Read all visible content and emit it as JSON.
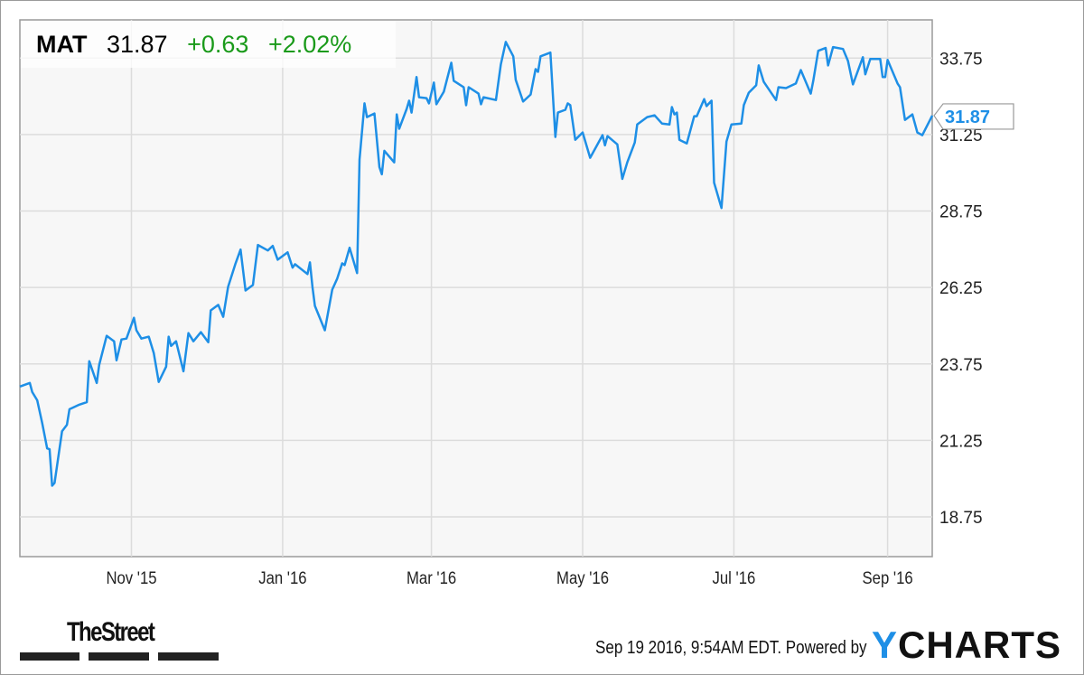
{
  "header": {
    "symbol": "MAT",
    "price": "31.87",
    "change": "+0.63",
    "change_pct": "+2.02%"
  },
  "last_value_label": "31.87",
  "footer": {
    "timestamp": "Sep 19 2016, 9:54AM EDT. Powered by",
    "brand_left": "TheStreet",
    "brand_right_y": "Y",
    "brand_right_rest": "CHARTS"
  },
  "colors": {
    "line": "#1e8fe6",
    "positive": "#1a9a1a",
    "grid": "#dcdcdc",
    "plot_bg": "#f7f7f7"
  },
  "chart_data": {
    "type": "line",
    "title": "",
    "xlabel": "",
    "ylabel": "",
    "ylim": [
      17.45,
      35.0
    ],
    "xlim": [
      "2015-09-17",
      "2016-09-19"
    ],
    "grid": true,
    "y_ticks": [
      "18.75",
      "21.25",
      "23.75",
      "26.25",
      "28.75",
      "31.25",
      "33.75"
    ],
    "x_ticks": [
      {
        "date": "2015-11-01",
        "label": "Nov '15"
      },
      {
        "date": "2016-01-01",
        "label": "Jan '16"
      },
      {
        "date": "2016-03-01",
        "label": "Mar '16"
      },
      {
        "date": "2016-05-01",
        "label": "May '16"
      },
      {
        "date": "2016-07-01",
        "label": "Jul '16"
      },
      {
        "date": "2016-09-01",
        "label": "Sep '16"
      }
    ],
    "series": [
      {
        "points": [
          [
            "2015-09-17",
            23.01
          ],
          [
            "2015-09-21",
            23.13
          ],
          [
            "2015-09-22",
            22.83
          ],
          [
            "2015-09-24",
            22.56
          ],
          [
            "2015-09-26",
            21.82
          ],
          [
            "2015-09-28",
            20.99
          ],
          [
            "2015-09-29",
            20.96
          ],
          [
            "2015-09-30",
            19.77
          ],
          [
            "2015-10-01",
            19.86
          ],
          [
            "2015-10-04",
            21.55
          ],
          [
            "2015-10-06",
            21.76
          ],
          [
            "2015-10-07",
            22.27
          ],
          [
            "2015-10-11",
            22.42
          ],
          [
            "2015-10-14",
            22.5
          ],
          [
            "2015-10-15",
            23.84
          ],
          [
            "2015-10-18",
            23.13
          ],
          [
            "2015-10-19",
            23.72
          ],
          [
            "2015-10-22",
            24.67
          ],
          [
            "2015-10-25",
            24.49
          ],
          [
            "2015-10-26",
            23.87
          ],
          [
            "2015-10-28",
            24.55
          ],
          [
            "2015-10-30",
            24.58
          ],
          [
            "2015-11-02",
            25.26
          ],
          [
            "2015-11-03",
            24.85
          ],
          [
            "2015-11-05",
            24.58
          ],
          [
            "2015-11-08",
            24.64
          ],
          [
            "2015-11-10",
            24.11
          ],
          [
            "2015-11-12",
            23.16
          ],
          [
            "2015-11-15",
            23.66
          ],
          [
            "2015-11-16",
            24.64
          ],
          [
            "2015-11-17",
            24.34
          ],
          [
            "2015-11-19",
            24.49
          ],
          [
            "2015-11-22",
            23.51
          ],
          [
            "2015-11-24",
            24.76
          ],
          [
            "2015-11-26",
            24.49
          ],
          [
            "2015-11-29",
            24.79
          ],
          [
            "2015-12-02",
            24.46
          ],
          [
            "2015-12-03",
            25.5
          ],
          [
            "2015-12-06",
            25.68
          ],
          [
            "2015-12-08",
            25.29
          ],
          [
            "2015-12-10",
            26.27
          ],
          [
            "2015-12-13",
            27.04
          ],
          [
            "2015-12-15",
            27.49
          ],
          [
            "2015-12-17",
            26.15
          ],
          [
            "2015-12-20",
            26.33
          ],
          [
            "2015-12-22",
            27.64
          ],
          [
            "2015-12-26",
            27.46
          ],
          [
            "2015-12-28",
            27.61
          ],
          [
            "2015-12-30",
            27.16
          ],
          [
            "2016-01-03",
            27.4
          ],
          [
            "2016-01-05",
            26.9
          ],
          [
            "2016-01-06",
            27.01
          ],
          [
            "2016-01-11",
            26.69
          ],
          [
            "2016-01-12",
            27.07
          ],
          [
            "2016-01-13",
            26.27
          ],
          [
            "2016-01-14",
            25.65
          ],
          [
            "2016-01-18",
            24.85
          ],
          [
            "2016-01-21",
            26.18
          ],
          [
            "2016-01-23",
            26.54
          ],
          [
            "2016-01-25",
            27.04
          ],
          [
            "2016-01-26",
            26.98
          ],
          [
            "2016-01-28",
            27.55
          ],
          [
            "2016-01-31",
            26.72
          ],
          [
            "2016-02-01",
            30.43
          ],
          [
            "2016-02-03",
            32.27
          ],
          [
            "2016-02-04",
            31.82
          ],
          [
            "2016-02-07",
            31.94
          ],
          [
            "2016-02-09",
            30.19
          ],
          [
            "2016-02-10",
            29.95
          ],
          [
            "2016-02-11",
            30.72
          ],
          [
            "2016-02-15",
            30.34
          ],
          [
            "2016-02-16",
            31.91
          ],
          [
            "2016-02-17",
            31.44
          ],
          [
            "2016-02-20",
            32.09
          ],
          [
            "2016-02-21",
            32.36
          ],
          [
            "2016-02-22",
            31.97
          ],
          [
            "2016-02-24",
            33.13
          ],
          [
            "2016-02-25",
            32.47
          ],
          [
            "2016-02-28",
            32.44
          ],
          [
            "2016-02-29",
            32.27
          ],
          [
            "2016-03-02",
            32.95
          ],
          [
            "2016-03-03",
            32.24
          ],
          [
            "2016-03-06",
            32.65
          ],
          [
            "2016-03-09",
            33.6
          ],
          [
            "2016-03-10",
            33.01
          ],
          [
            "2016-03-14",
            32.8
          ],
          [
            "2016-03-15",
            32.21
          ],
          [
            "2016-03-16",
            32.8
          ],
          [
            "2016-03-20",
            32.59
          ],
          [
            "2016-03-21",
            32.24
          ],
          [
            "2016-03-22",
            32.47
          ],
          [
            "2016-03-27",
            32.38
          ],
          [
            "2016-03-29",
            33.54
          ],
          [
            "2016-03-31",
            34.28
          ],
          [
            "2016-04-03",
            33.81
          ],
          [
            "2016-04-04",
            33.04
          ],
          [
            "2016-04-07",
            32.33
          ],
          [
            "2016-04-10",
            32.56
          ],
          [
            "2016-04-12",
            33.39
          ],
          [
            "2016-04-13",
            33.3
          ],
          [
            "2016-04-14",
            33.81
          ],
          [
            "2016-04-18",
            33.93
          ],
          [
            "2016-04-20",
            31.17
          ],
          [
            "2016-04-21",
            31.97
          ],
          [
            "2016-04-24",
            32.06
          ],
          [
            "2016-04-25",
            32.27
          ],
          [
            "2016-04-26",
            32.21
          ],
          [
            "2016-04-28",
            31.08
          ],
          [
            "2016-05-01",
            31.32
          ],
          [
            "2016-05-04",
            30.49
          ],
          [
            "2016-05-09",
            31.23
          ],
          [
            "2016-05-10",
            30.9
          ],
          [
            "2016-05-11",
            31.2
          ],
          [
            "2016-05-15",
            30.93
          ],
          [
            "2016-05-17",
            29.8
          ],
          [
            "2016-05-19",
            30.34
          ],
          [
            "2016-05-22",
            30.99
          ],
          [
            "2016-05-23",
            31.58
          ],
          [
            "2016-05-27",
            31.82
          ],
          [
            "2016-05-30",
            31.88
          ],
          [
            "2016-06-02",
            31.61
          ],
          [
            "2016-06-05",
            31.58
          ],
          [
            "2016-06-06",
            32.15
          ],
          [
            "2016-06-07",
            31.91
          ],
          [
            "2016-06-08",
            31.97
          ],
          [
            "2016-06-09",
            31.08
          ],
          [
            "2016-06-12",
            30.96
          ],
          [
            "2016-06-15",
            31.85
          ],
          [
            "2016-06-16",
            31.85
          ],
          [
            "2016-06-19",
            32.41
          ],
          [
            "2016-06-20",
            32.18
          ],
          [
            "2016-06-22",
            32.36
          ],
          [
            "2016-06-23",
            29.68
          ],
          [
            "2016-06-26",
            28.85
          ],
          [
            "2016-06-28",
            31.02
          ],
          [
            "2016-06-30",
            31.58
          ],
          [
            "2016-07-04",
            31.61
          ],
          [
            "2016-07-05",
            32.21
          ],
          [
            "2016-07-07",
            32.62
          ],
          [
            "2016-07-10",
            32.86
          ],
          [
            "2016-07-11",
            33.51
          ],
          [
            "2016-07-13",
            32.98
          ],
          [
            "2016-07-18",
            32.38
          ],
          [
            "2016-07-19",
            32.8
          ],
          [
            "2016-07-22",
            32.77
          ],
          [
            "2016-07-26",
            32.92
          ],
          [
            "2016-07-28",
            33.36
          ],
          [
            "2016-08-01",
            32.59
          ],
          [
            "2016-08-02",
            33.01
          ],
          [
            "2016-08-04",
            33.99
          ],
          [
            "2016-08-07",
            34.08
          ],
          [
            "2016-08-08",
            33.51
          ],
          [
            "2016-08-10",
            34.11
          ],
          [
            "2016-08-14",
            34.05
          ],
          [
            "2016-08-16",
            33.66
          ],
          [
            "2016-08-18",
            32.89
          ],
          [
            "2016-08-22",
            33.78
          ],
          [
            "2016-08-23",
            33.22
          ],
          [
            "2016-08-25",
            33.72
          ],
          [
            "2016-08-29",
            33.72
          ],
          [
            "2016-08-30",
            33.13
          ],
          [
            "2016-08-31",
            33.13
          ],
          [
            "2016-09-01",
            33.69
          ],
          [
            "2016-09-05",
            32.92
          ],
          [
            "2016-09-06",
            32.8
          ],
          [
            "2016-09-08",
            31.73
          ],
          [
            "2016-09-11",
            31.91
          ],
          [
            "2016-09-13",
            31.32
          ],
          [
            "2016-09-15",
            31.23
          ],
          [
            "2016-09-19",
            31.87
          ]
        ]
      }
    ]
  }
}
